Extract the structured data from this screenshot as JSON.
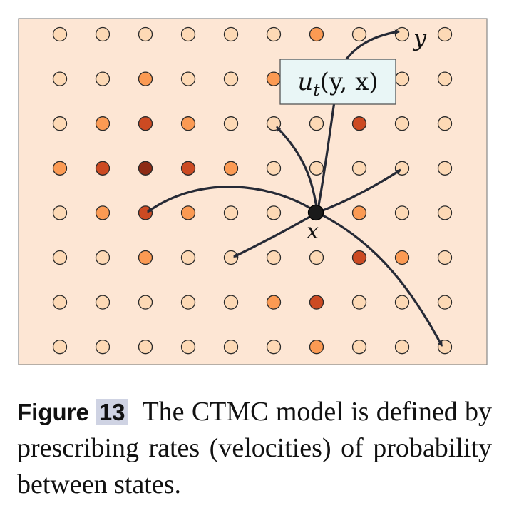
{
  "diagram": {
    "grid": {
      "columns": 10,
      "rows": 8,
      "cell_levels": [
        [
          0,
          0,
          0,
          0,
          0,
          0,
          2,
          0,
          0,
          0
        ],
        [
          0,
          0,
          2,
          0,
          0,
          2,
          0,
          0,
          0,
          0
        ],
        [
          0,
          2,
          3,
          2,
          0,
          0,
          0,
          3,
          0,
          0
        ],
        [
          2,
          3,
          4,
          3,
          2,
          0,
          0,
          0,
          0,
          0
        ],
        [
          0,
          2,
          3,
          2,
          0,
          0,
          0,
          2,
          0,
          0
        ],
        [
          0,
          0,
          2,
          0,
          0,
          0,
          0,
          3,
          2,
          0
        ],
        [
          0,
          0,
          0,
          0,
          0,
          2,
          3,
          0,
          0,
          0
        ],
        [
          0,
          0,
          0,
          0,
          0,
          0,
          2,
          0,
          0,
          0
        ]
      ],
      "level_colors": [
        "#fdd9b5",
        "#fdb77f",
        "#fb9a53",
        "#cc4a22",
        "#8e2b15"
      ]
    },
    "background_color": "#fde6d4",
    "node_color": "#1a1a1a",
    "arrow_color": "#262a36",
    "labels": {
      "x": "x",
      "y": "y",
      "rate": "u_t(y, x)"
    }
  },
  "caption": {
    "figure_label": "Figure",
    "figure_number": "13",
    "text": "The CTMC model is defined by prescribing rates (velocities) of probability between states."
  }
}
